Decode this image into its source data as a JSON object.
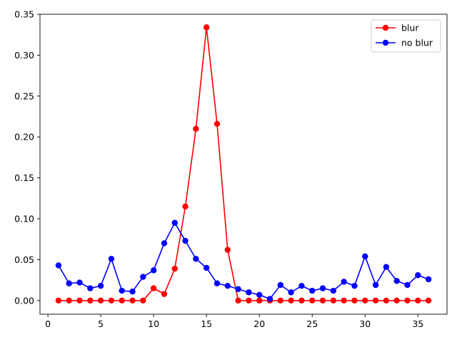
{
  "chart_data": {
    "type": "line",
    "title": "",
    "xlabel": "",
    "ylabel": "",
    "xlim": [
      -0.75,
      37.75
    ],
    "ylim": [
      -0.0167,
      0.35
    ],
    "xticks": [
      0,
      5,
      10,
      15,
      20,
      25,
      30,
      35
    ],
    "yticks": [
      0.0,
      0.05,
      0.1,
      0.15,
      0.2,
      0.25,
      0.3,
      0.35
    ],
    "ytick_labels": [
      "0.00",
      "0.05",
      "0.10",
      "0.15",
      "0.20",
      "0.25",
      "0.30",
      "0.35"
    ],
    "grid": false,
    "legend": "top-right",
    "x": [
      1,
      2,
      3,
      4,
      5,
      6,
      7,
      8,
      9,
      10,
      11,
      12,
      13,
      14,
      15,
      16,
      17,
      18,
      19,
      20,
      21,
      22,
      23,
      24,
      25,
      26,
      27,
      28,
      29,
      30,
      31,
      32,
      33,
      34,
      35,
      36
    ],
    "series": [
      {
        "name": "blur",
        "color": "#ff0000",
        "marker": "circle",
        "values": [
          0,
          0,
          0,
          0,
          0,
          0,
          0,
          0,
          0,
          0.015,
          0.008,
          0.039,
          0.115,
          0.21,
          0.334,
          0.216,
          0.062,
          0,
          0,
          0,
          0,
          0,
          0,
          0,
          0,
          0,
          0,
          0,
          0,
          0,
          0,
          0,
          0,
          0,
          0,
          0
        ]
      },
      {
        "name": "no blur",
        "color": "#0000ff",
        "marker": "circle",
        "values": [
          0.043,
          0.021,
          0.022,
          0.015,
          0.018,
          0.051,
          0.012,
          0.011,
          0.029,
          0.037,
          0.07,
          0.095,
          0.073,
          0.051,
          0.04,
          0.021,
          0.018,
          0.014,
          0.01,
          0.007,
          0.002,
          0.019,
          0.01,
          0.018,
          0.012,
          0.015,
          0.012,
          0.023,
          0.018,
          0.054,
          0.019,
          0.041,
          0.024,
          0.019,
          0.031,
          0.026
        ]
      }
    ]
  }
}
